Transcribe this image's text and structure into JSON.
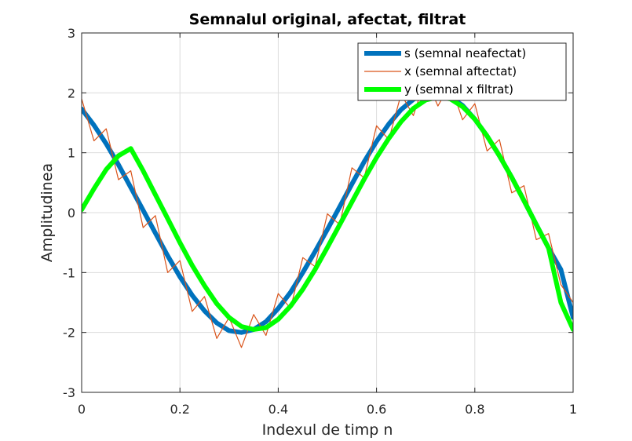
{
  "chart_data": {
    "type": "line",
    "title": "Semnalul original, afectat, filtrat",
    "xlabel": "Indexul de timp n",
    "ylabel": "Amplitudinea",
    "xlim": [
      0,
      1
    ],
    "ylim": [
      -3,
      3
    ],
    "xticks": [
      0,
      0.2,
      0.4,
      0.6,
      0.8,
      1
    ],
    "xtick_labels": [
      "0",
      "0.2",
      "0.4",
      "0.6",
      "0.8",
      "1"
    ],
    "yticks": [
      -3,
      -2,
      -1,
      0,
      1,
      2,
      3
    ],
    "ytick_labels": [
      "-3",
      "-2",
      "-1",
      "0",
      "1",
      "2",
      "3"
    ],
    "grid": true,
    "legend_position": "top-right",
    "series": [
      {
        "name": "s (semnal neafectat)",
        "color": "#0072BD",
        "x": [
          0,
          0.025,
          0.05,
          0.075,
          0.1,
          0.125,
          0.15,
          0.175,
          0.2,
          0.225,
          0.25,
          0.275,
          0.3,
          0.325,
          0.35,
          0.375,
          0.4,
          0.425,
          0.45,
          0.475,
          0.5,
          0.525,
          0.55,
          0.575,
          0.6,
          0.625,
          0.65,
          0.675,
          0.7,
          0.725,
          0.75,
          0.775,
          0.8,
          0.825,
          0.85,
          0.875,
          0.9,
          0.925,
          0.95,
          0.975,
          1
        ],
        "values": [
          1.73,
          1.46,
          1.15,
          0.8,
          0.42,
          0.04,
          -0.34,
          -0.72,
          -1.07,
          -1.38,
          -1.64,
          -1.84,
          -1.97,
          -2.0,
          -1.95,
          -1.82,
          -1.6,
          -1.33,
          -1.0,
          -0.65,
          -0.28,
          0.1,
          0.48,
          0.85,
          1.19,
          1.48,
          1.72,
          1.89,
          1.99,
          2.0,
          1.93,
          1.79,
          1.56,
          1.28,
          0.95,
          0.59,
          0.2,
          -0.2,
          -0.59,
          -0.95,
          -1.75
        ]
      },
      {
        "name": "x (semnal aftectat)",
        "color": "#D95319",
        "x": [
          0,
          0.025,
          0.05,
          0.075,
          0.1,
          0.125,
          0.15,
          0.175,
          0.2,
          0.225,
          0.25,
          0.275,
          0.3,
          0.325,
          0.35,
          0.375,
          0.4,
          0.425,
          0.45,
          0.475,
          0.5,
          0.525,
          0.55,
          0.575,
          0.6,
          0.625,
          0.65,
          0.675,
          0.7,
          0.725,
          0.75,
          0.775,
          0.8,
          0.825,
          0.85,
          0.875,
          0.9,
          0.925,
          0.95,
          0.975,
          1
        ],
        "values": [
          1.9,
          1.2,
          1.4,
          0.55,
          0.7,
          -0.25,
          -0.05,
          -1.0,
          -0.8,
          -1.65,
          -1.4,
          -2.1,
          -1.75,
          -2.25,
          -1.7,
          -2.05,
          -1.35,
          -1.6,
          -0.75,
          -0.9,
          -0.02,
          -0.2,
          0.75,
          0.58,
          1.45,
          1.22,
          1.98,
          1.62,
          2.25,
          1.78,
          2.15,
          1.55,
          1.82,
          1.03,
          1.22,
          0.33,
          0.45,
          -0.45,
          -0.35,
          -1.2,
          -1.5
        ]
      },
      {
        "name": "y (semnal x filtrat)",
        "color": "#00FF00",
        "x": [
          0,
          0.025,
          0.05,
          0.075,
          0.1,
          0.125,
          0.15,
          0.175,
          0.2,
          0.225,
          0.25,
          0.275,
          0.3,
          0.325,
          0.35,
          0.375,
          0.4,
          0.425,
          0.45,
          0.475,
          0.5,
          0.525,
          0.55,
          0.575,
          0.6,
          0.625,
          0.65,
          0.675,
          0.7,
          0.725,
          0.75,
          0.775,
          0.8,
          0.825,
          0.85,
          0.875,
          0.9,
          0.925,
          0.95,
          0.975,
          1
        ],
        "values": [
          0.05,
          0.4,
          0.72,
          0.95,
          1.07,
          0.7,
          0.3,
          -0.1,
          -0.5,
          -0.88,
          -1.22,
          -1.52,
          -1.75,
          -1.9,
          -1.95,
          -1.92,
          -1.78,
          -1.56,
          -1.28,
          -0.95,
          -0.58,
          -0.2,
          0.18,
          0.56,
          0.92,
          1.24,
          1.52,
          1.74,
          1.88,
          1.93,
          1.9,
          1.77,
          1.56,
          1.28,
          0.95,
          0.59,
          0.2,
          -0.2,
          -0.59,
          -1.5,
          -1.95
        ]
      }
    ]
  }
}
